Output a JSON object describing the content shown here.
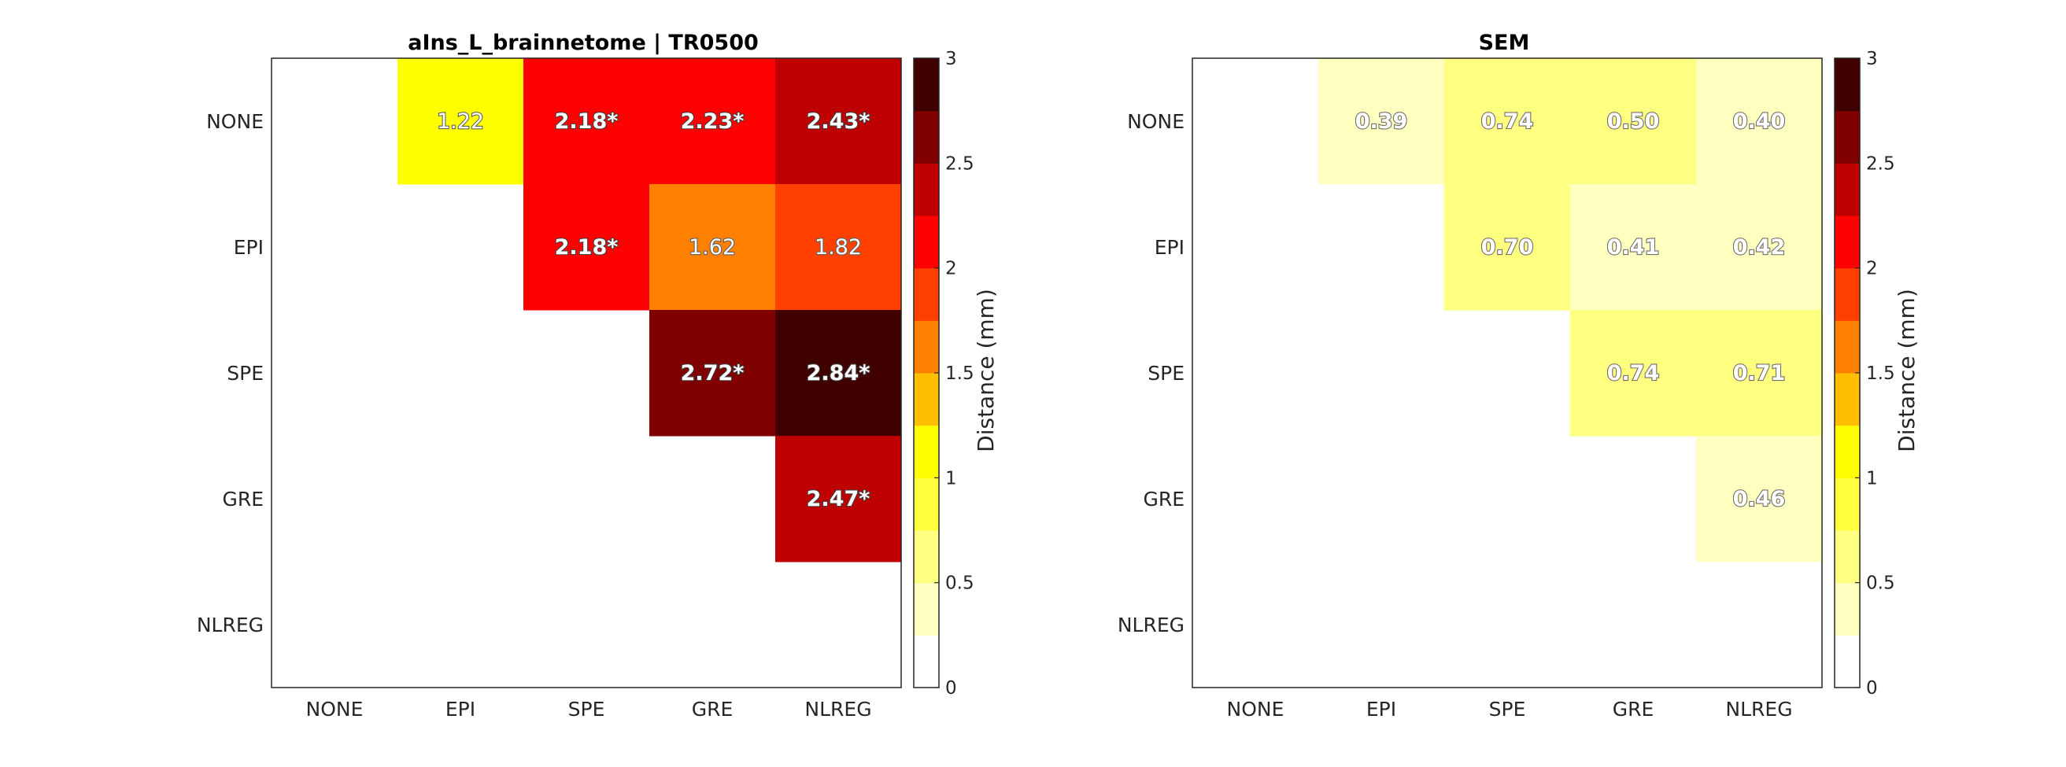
{
  "chart_data": [
    {
      "type": "heatmap",
      "title": "aIns_L_brainnetome | TR0500",
      "xlabel": "",
      "ylabel": "",
      "x_categories": [
        "NONE",
        "EPI",
        "SPE",
        "GRE",
        "NLREG"
      ],
      "y_categories": [
        "NONE",
        "EPI",
        "SPE",
        "GRE",
        "NLREG"
      ],
      "values": [
        [
          null,
          1.22,
          2.18,
          2.23,
          2.43
        ],
        [
          null,
          null,
          2.18,
          1.62,
          1.82
        ],
        [
          null,
          null,
          null,
          2.72,
          2.84
        ],
        [
          null,
          null,
          null,
          null,
          2.47
        ],
        [
          null,
          null,
          null,
          null,
          null
        ]
      ],
      "labels": [
        [
          "",
          "1.22",
          "2.18*",
          "2.23*",
          "2.43*"
        ],
        [
          "",
          "",
          "2.18*",
          "1.62",
          "1.82"
        ],
        [
          "",
          "",
          "",
          "2.72*",
          "2.84*"
        ],
        [
          "",
          "",
          "",
          "",
          "2.47*"
        ],
        [
          "",
          "",
          "",
          "",
          ""
        ]
      ],
      "colorbar": {
        "label": "Distance (mm)",
        "range": [
          0,
          3
        ],
        "ticks": [
          "0",
          "0.5",
          "1",
          "1.5",
          "2",
          "2.5",
          "3"
        ]
      },
      "grid": false
    },
    {
      "type": "heatmap",
      "title": "SEM",
      "xlabel": "",
      "ylabel": "",
      "x_categories": [
        "NONE",
        "EPI",
        "SPE",
        "GRE",
        "NLREG"
      ],
      "y_categories": [
        "NONE",
        "EPI",
        "SPE",
        "GRE",
        "NLREG"
      ],
      "values": [
        [
          null,
          0.39,
          0.74,
          0.5,
          0.4
        ],
        [
          null,
          null,
          0.7,
          0.41,
          0.42
        ],
        [
          null,
          null,
          null,
          0.74,
          0.71
        ],
        [
          null,
          null,
          null,
          null,
          0.46
        ],
        [
          null,
          null,
          null,
          null,
          null
        ]
      ],
      "labels": [
        [
          "",
          "0.39",
          "0.74",
          "0.50",
          "0.40"
        ],
        [
          "",
          "",
          "0.70",
          "0.41",
          "0.42"
        ],
        [
          "",
          "",
          "",
          "0.74",
          "0.71"
        ],
        [
          "",
          "",
          "",
          "",
          "0.46"
        ],
        [
          "",
          "",
          "",
          "",
          ""
        ]
      ],
      "colorbar": {
        "label": "Distance (mm)",
        "range": [
          0,
          3
        ],
        "ticks": [
          "0",
          "0.5",
          "1",
          "1.5",
          "2",
          "2.5",
          "3"
        ]
      },
      "grid": false
    }
  ],
  "colormap": {
    "name": "hot (reversed, 12 levels)",
    "levels": [
      "#ffffff",
      "#ffffc0",
      "#ffff80",
      "#ffff40",
      "#ffff00",
      "#ffbf00",
      "#ff8000",
      "#ff4000",
      "#ff0000",
      "#bf0000",
      "#800000",
      "#400000"
    ]
  }
}
